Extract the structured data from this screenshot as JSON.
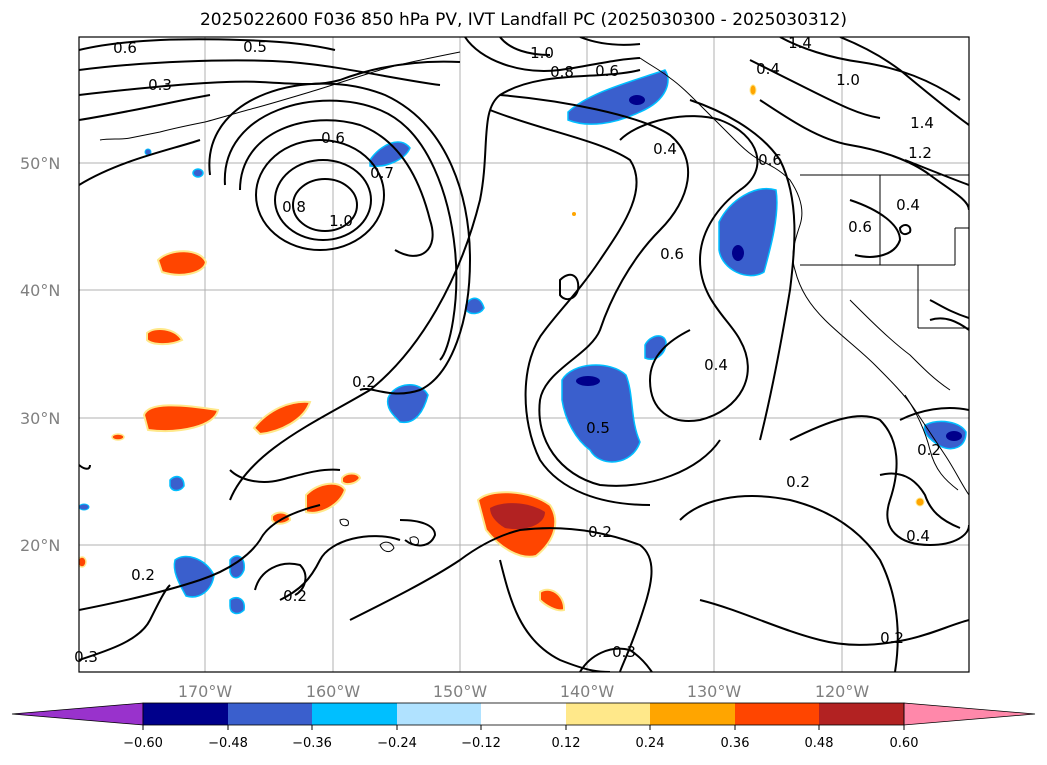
{
  "title": "2025022600 F036 850 hPa PV, IVT Landfall PC (2025030300 - 2025030312)",
  "map": {
    "lat_labels": [
      "50°N",
      "40°N",
      "30°N",
      "20°N"
    ],
    "lon_labels": [
      "170°W",
      "160°W",
      "150°W",
      "140°W",
      "130°W",
      "120°W"
    ],
    "contour_labels": [
      "0.6",
      "0.5",
      "0.3",
      "1.0",
      "0.8",
      "0.6",
      "0.4",
      "1.4",
      "0.4",
      "1.0",
      "0.7",
      "1.4",
      "1.2",
      "0.6",
      "0.6",
      "1.0",
      "0.8",
      "0.6",
      "0.6",
      "0.4",
      "0.2",
      "0.5",
      "0.4",
      "0.2",
      "0.2",
      "0.2",
      "0.2",
      "0.2",
      "0.4",
      "0.3",
      "0.2",
      "0.3"
    ],
    "colors": {
      "contour": "#000000",
      "grid": "#b0b0b0",
      "neg_deep": "#00008b",
      "neg_mid": "#3a5fcd",
      "neg_light": "#00bfff",
      "pos_light": "#ffa500",
      "pos_mid": "#ff4500",
      "pos_deep": "#b22222",
      "pale_yellow": "#ffe88a"
    }
  },
  "colorbar": {
    "ticks": [
      "−0.60",
      "−0.48",
      "−0.36",
      "−0.24",
      "−0.12",
      "0.12",
      "0.24",
      "0.36",
      "0.48",
      "0.60"
    ],
    "colors": [
      "#9932cc",
      "#00008b",
      "#3a5fcd",
      "#00bfff",
      "#b0e2ff",
      "#ffffff",
      "#ffe88a",
      "#ffa500",
      "#ff4500",
      "#b22222",
      "#ff88aa"
    ]
  }
}
